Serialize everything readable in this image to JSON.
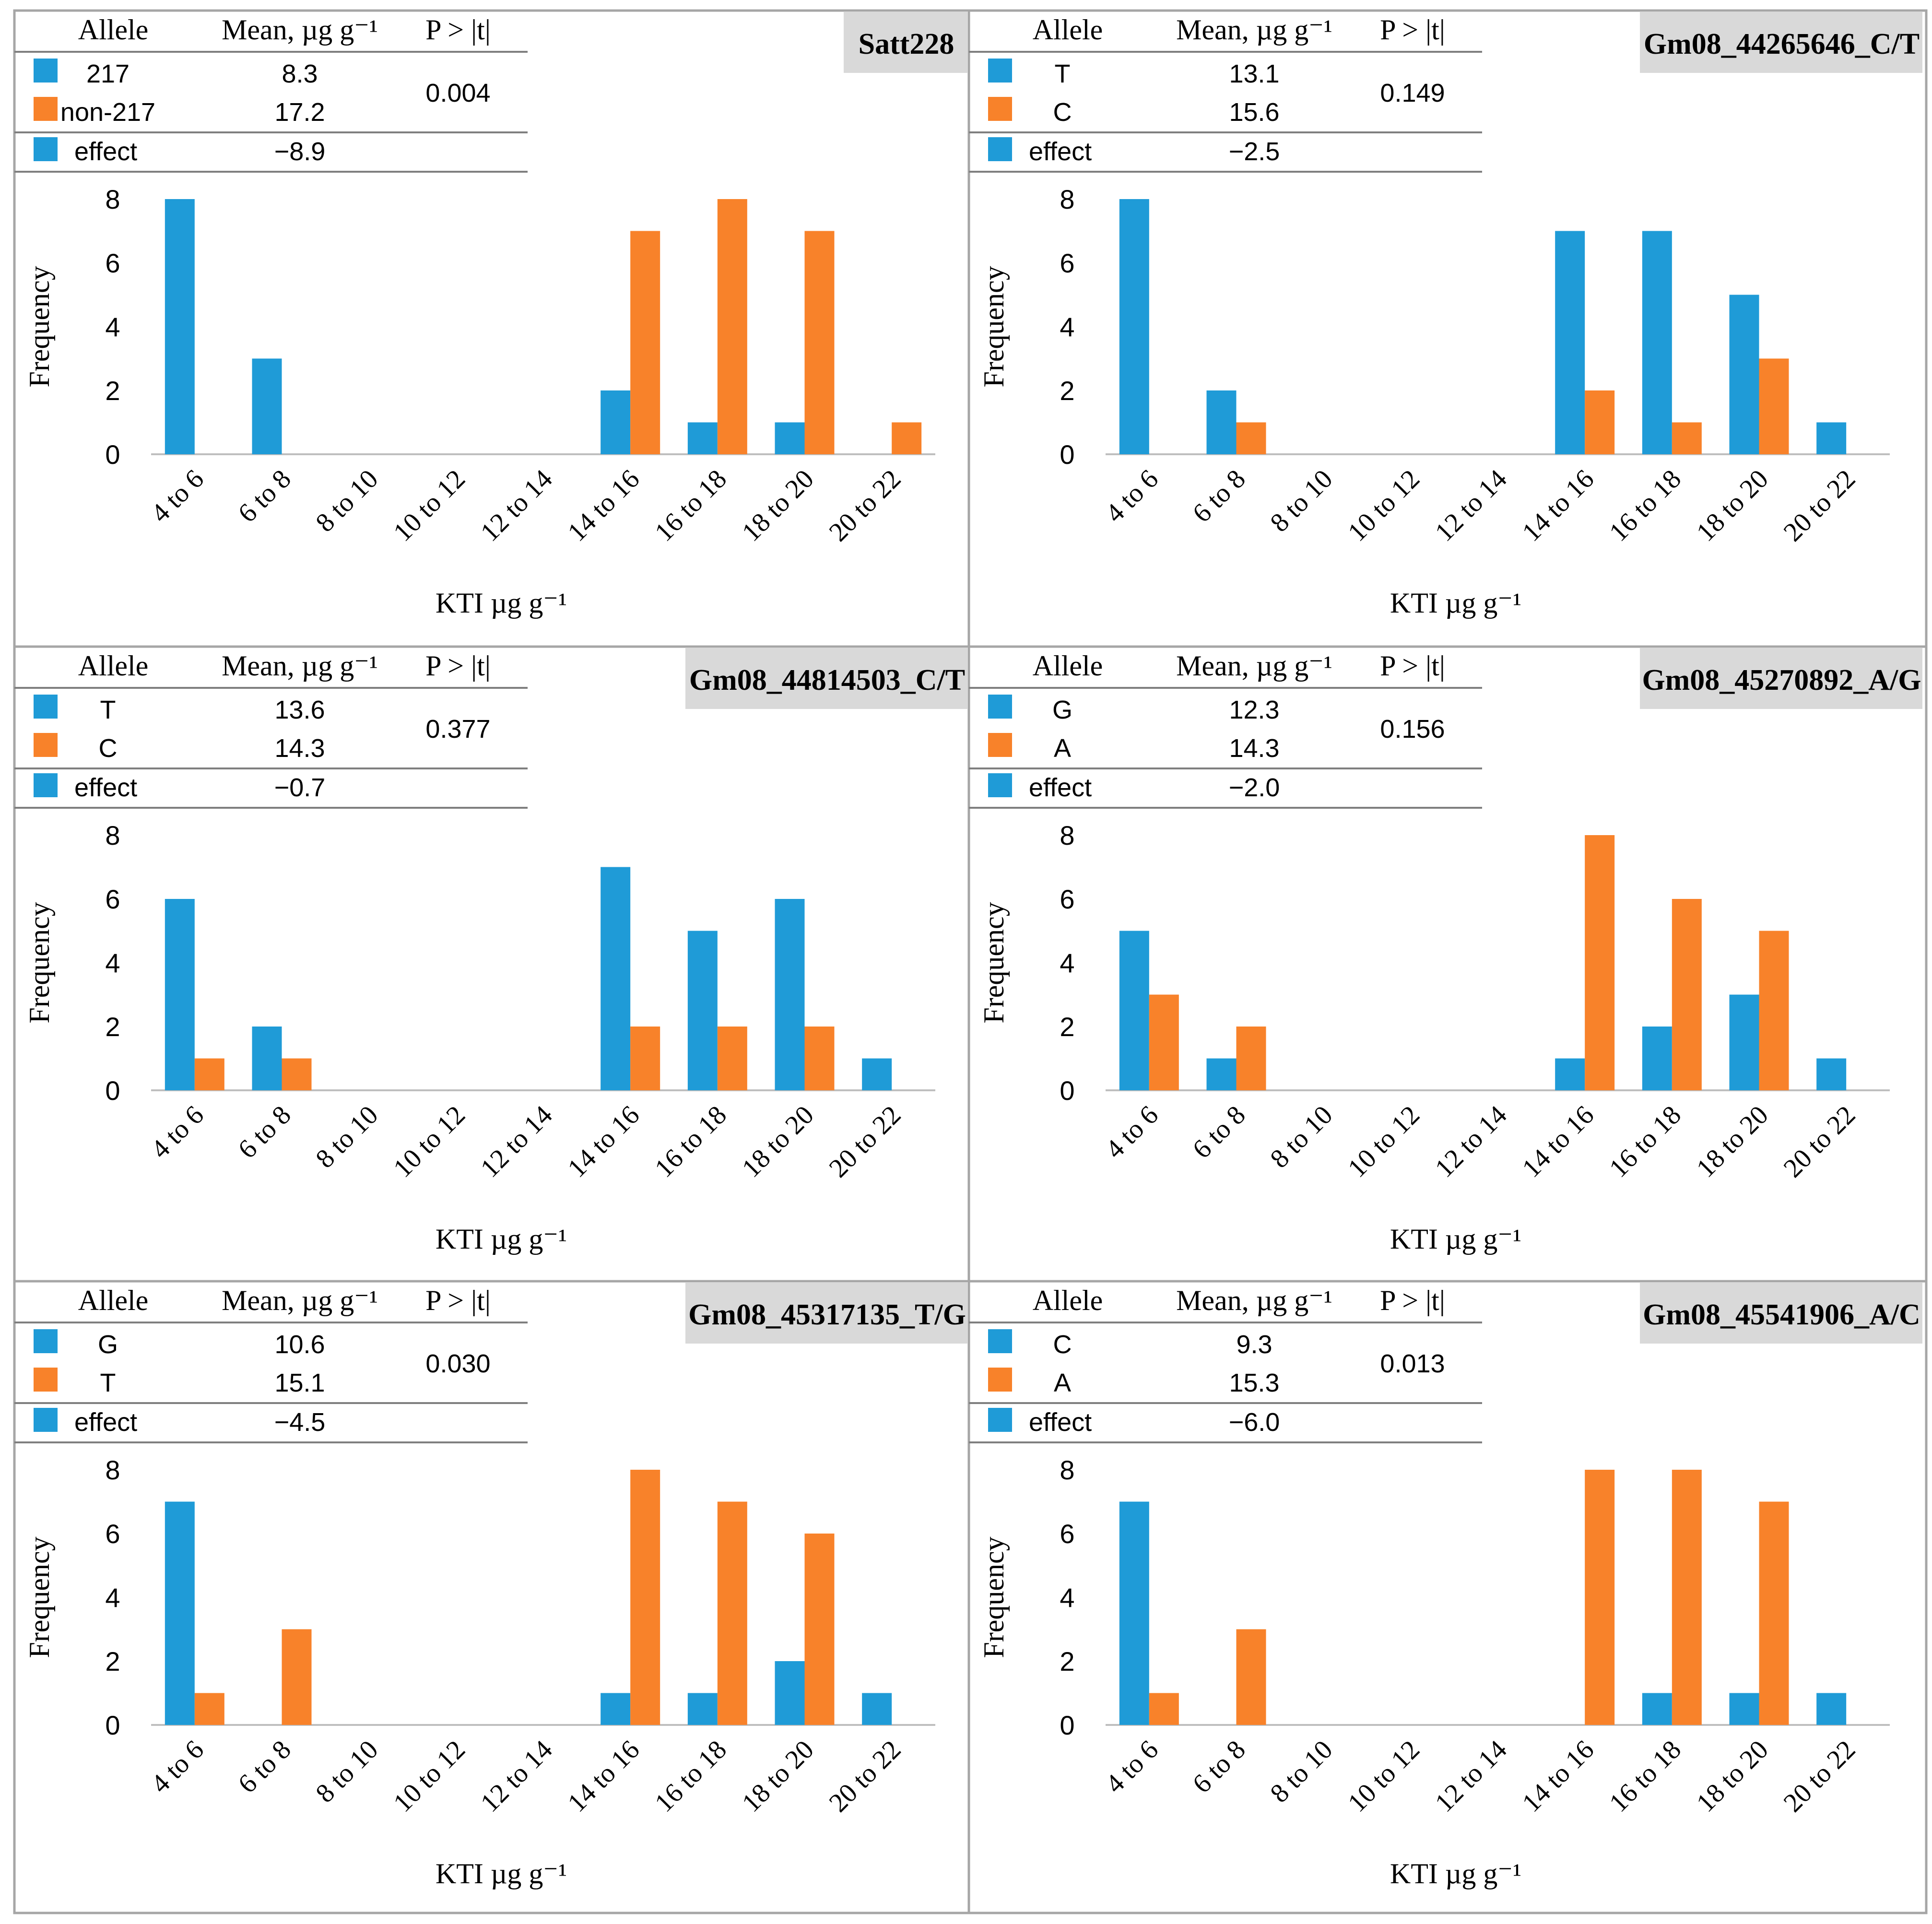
{
  "colors": {
    "blue": "#1f9bd7",
    "orange": "#f8822a",
    "title_bg": "#d9d9d9",
    "frame": "#a6a6a6",
    "axis": "#bfbfbf"
  },
  "header_labels": {
    "allele": "Allele",
    "mean": "Mean, µg g⁻¹",
    "p": "P > |t|",
    "effect": "effect"
  },
  "axis_labels": {
    "ylabel": "Frequency",
    "xlabel": "KTI µg  g⁻¹"
  },
  "chart_data": [
    {
      "type": "bar",
      "title": "Satt228",
      "categories": [
        "4 to 6",
        "6 to 8",
        "8 to 10",
        "10 to 12",
        "12 to 14",
        "14 to 16",
        "16 to 18",
        "18 to 20",
        "20 to 22"
      ],
      "yticks": [
        "0",
        "2",
        "4",
        "6",
        "8"
      ],
      "ylim": [
        0,
        8
      ],
      "xlabel": "KTI µg  g⁻¹",
      "ylabel": "Frequency",
      "series": [
        {
          "name": "217",
          "color": "blue",
          "values": [
            8,
            3,
            0,
            0,
            0,
            2,
            1,
            1,
            0
          ]
        },
        {
          "name": "non-217",
          "color": "orange",
          "values": [
            0,
            0,
            0,
            0,
            0,
            7,
            8,
            7,
            1
          ]
        }
      ],
      "table": {
        "rows": [
          {
            "allele": "217",
            "mean": "8.3"
          },
          {
            "allele": "non-217",
            "mean": "17.2"
          }
        ],
        "p": "0.004",
        "effect": "−8.9"
      }
    },
    {
      "type": "bar",
      "title": "Gm08_44265646_C/T",
      "categories": [
        "4 to 6",
        "6 to 8",
        "8 to 10",
        "10 to 12",
        "12 to 14",
        "14 to 16",
        "16 to 18",
        "18 to 20",
        "20 to 22"
      ],
      "yticks": [
        "0",
        "2",
        "4",
        "6",
        "8"
      ],
      "ylim": [
        0,
        8
      ],
      "xlabel": "KTI µg  g⁻¹",
      "ylabel": "Frequency",
      "series": [
        {
          "name": "T",
          "color": "blue",
          "values": [
            8,
            2,
            0,
            0,
            0,
            7,
            7,
            5,
            1
          ]
        },
        {
          "name": "C",
          "color": "orange",
          "values": [
            0,
            1,
            0,
            0,
            0,
            2,
            1,
            3,
            0
          ]
        }
      ],
      "table": {
        "rows": [
          {
            "allele": "T",
            "mean": "13.1"
          },
          {
            "allele": "C",
            "mean": "15.6"
          }
        ],
        "p": "0.149",
        "effect": "−2.5"
      }
    },
    {
      "type": "bar",
      "title": "Gm08_44814503_C/T",
      "categories": [
        "4 to 6",
        "6 to 8",
        "8 to 10",
        "10 to 12",
        "12 to 14",
        "14 to 16",
        "16 to 18",
        "18 to 20",
        "20 to 22"
      ],
      "yticks": [
        "0",
        "2",
        "4",
        "6",
        "8"
      ],
      "ylim": [
        0,
        8
      ],
      "xlabel": "KTI µg  g⁻¹",
      "ylabel": "Frequency",
      "series": [
        {
          "name": "T",
          "color": "blue",
          "values": [
            6,
            2,
            0,
            0,
            0,
            7,
            5,
            6,
            1
          ]
        },
        {
          "name": "C",
          "color": "orange",
          "values": [
            1,
            1,
            0,
            0,
            0,
            2,
            2,
            2,
            0
          ]
        }
      ],
      "table": {
        "rows": [
          {
            "allele": "T",
            "mean": "13.6"
          },
          {
            "allele": "C",
            "mean": "14.3"
          }
        ],
        "p": "0.377",
        "effect": "−0.7"
      }
    },
    {
      "type": "bar",
      "title": "Gm08_45270892_A/G",
      "categories": [
        "4 to 6",
        "6 to 8",
        "8 to 10",
        "10 to 12",
        "12 to 14",
        "14 to 16",
        "16 to 18",
        "18 to 20",
        "20 to 22"
      ],
      "yticks": [
        "0",
        "2",
        "4",
        "6",
        "8"
      ],
      "ylim": [
        0,
        8
      ],
      "xlabel": "KTI µg  g⁻¹",
      "ylabel": "Frequency",
      "series": [
        {
          "name": "G",
          "color": "blue",
          "values": [
            5,
            1,
            0,
            0,
            0,
            1,
            2,
            3,
            1
          ]
        },
        {
          "name": "A",
          "color": "orange",
          "values": [
            3,
            2,
            0,
            0,
            0,
            8,
            6,
            5,
            0
          ]
        }
      ],
      "table": {
        "rows": [
          {
            "allele": "G",
            "mean": "12.3"
          },
          {
            "allele": "A",
            "mean": "14.3"
          }
        ],
        "p": "0.156",
        "effect": "−2.0"
      }
    },
    {
      "type": "bar",
      "title": "Gm08_45317135_T/G",
      "categories": [
        "4 to 6",
        "6 to 8",
        "8 to 10",
        "10 to 12",
        "12 to 14",
        "14 to 16",
        "16 to 18",
        "18 to 20",
        "20 to 22"
      ],
      "yticks": [
        "0",
        "2",
        "4",
        "6",
        "8"
      ],
      "ylim": [
        0,
        8
      ],
      "xlabel": "KTI µg  g⁻¹",
      "ylabel": "Frequency",
      "series": [
        {
          "name": "G",
          "color": "blue",
          "values": [
            7,
            0,
            0,
            0,
            0,
            1,
            1,
            2,
            1
          ]
        },
        {
          "name": "T",
          "color": "orange",
          "values": [
            1,
            3,
            0,
            0,
            0,
            8,
            7,
            6,
            0
          ]
        }
      ],
      "table": {
        "rows": [
          {
            "allele": "G",
            "mean": "10.6"
          },
          {
            "allele": "T",
            "mean": "15.1"
          }
        ],
        "p": "0.030",
        "effect": "−4.5"
      }
    },
    {
      "type": "bar",
      "title": "Gm08_45541906_A/C",
      "categories": [
        "4 to 6",
        "6 to 8",
        "8 to 10",
        "10 to 12",
        "12 to 14",
        "14 to 16",
        "16 to 18",
        "18 to 20",
        "20 to 22"
      ],
      "yticks": [
        "0",
        "2",
        "4",
        "6",
        "8"
      ],
      "ylim": [
        0,
        8
      ],
      "xlabel": "KTI µg  g⁻¹",
      "ylabel": "Frequency",
      "series": [
        {
          "name": "C",
          "color": "blue",
          "values": [
            7,
            0,
            0,
            0,
            0,
            0,
            1,
            1,
            1
          ]
        },
        {
          "name": "A",
          "color": "orange",
          "values": [
            1,
            3,
            0,
            0,
            0,
            8,
            8,
            7,
            0
          ]
        }
      ],
      "table": {
        "rows": [
          {
            "allele": "C",
            "mean": "9.3"
          },
          {
            "allele": "A",
            "mean": "15.3"
          }
        ],
        "p": "0.013",
        "effect": "−6.0"
      }
    }
  ]
}
